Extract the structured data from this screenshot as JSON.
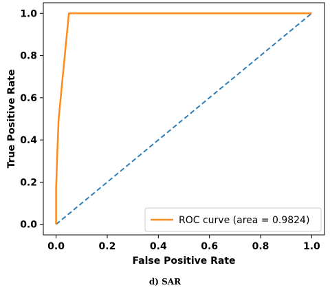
{
  "chart_data": {
    "type": "line",
    "xlabel": "False Positive Rate",
    "ylabel": "True Positive Rate",
    "xlim": [
      -0.05,
      1.05
    ],
    "ylim": [
      -0.05,
      1.05
    ],
    "x_ticks": [
      "0.0",
      "0.2",
      "0.4",
      "0.6",
      "0.8",
      "1.0"
    ],
    "x_tick_values": [
      0.0,
      0.2,
      0.4,
      0.6,
      0.8,
      1.0
    ],
    "y_ticks": [
      "0.0",
      "0.2",
      "0.4",
      "0.6",
      "0.8",
      "1.0"
    ],
    "y_tick_values": [
      0.0,
      0.2,
      0.4,
      0.6,
      0.8,
      1.0
    ],
    "grid": false,
    "legend_position": "lower-right",
    "series": [
      {
        "name": "ROC curve (area = 0.9824)",
        "color": "#ff8c1a",
        "style": "solid",
        "x": [
          0.0,
          0.0,
          0.005,
          0.01,
          0.05,
          1.0
        ],
        "y": [
          0.0,
          0.17,
          0.35,
          0.5,
          1.0,
          1.0
        ]
      },
      {
        "color": "#2c7fb8",
        "style": "dashed",
        "x": [
          0.0,
          1.0
        ],
        "y": [
          0.0,
          1.0
        ]
      }
    ]
  },
  "caption": "d) SAR"
}
